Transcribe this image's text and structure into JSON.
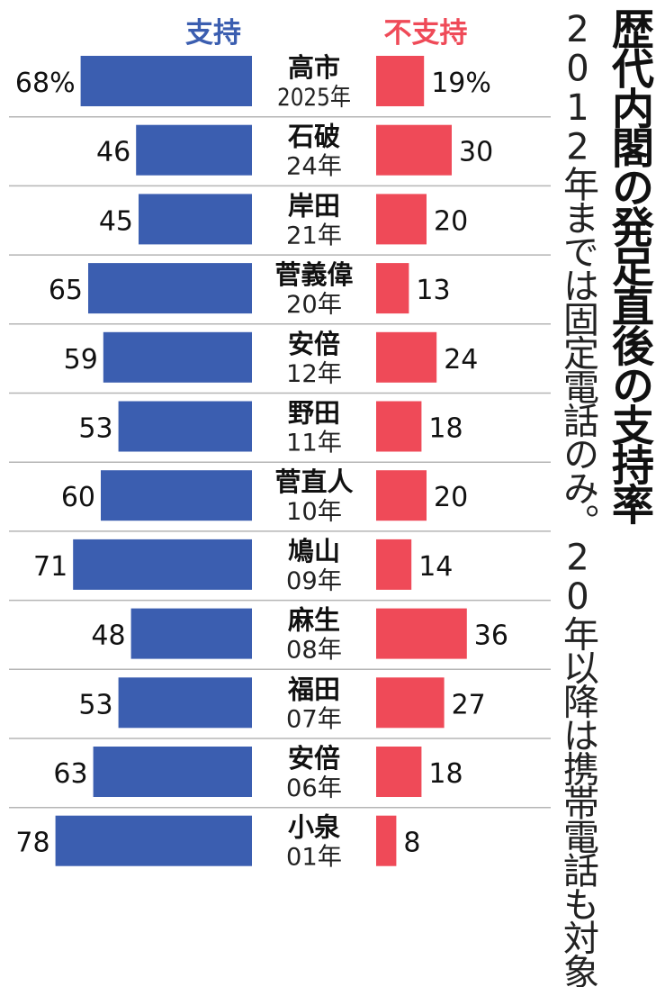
{
  "title": "歴代内閣の発足直後の支持率",
  "note": "2012年までは固定電話のみ。20年以降は携帯電話も対象",
  "colors": {
    "support": "#3b5eb0",
    "nonsupport": "#ef4a58",
    "support_header": "#3b5eb0",
    "nonsupport_header": "#ef4a58"
  },
  "chart_data": {
    "type": "bar",
    "layout": "back-to-back horizontal",
    "headers": {
      "support": "支持",
      "nonsupport": "不支持"
    },
    "unit": "%",
    "categories": [
      {
        "name": "高市",
        "year": "2025年"
      },
      {
        "name": "石破",
        "year": "24年"
      },
      {
        "name": "岸田",
        "year": "21年"
      },
      {
        "name": "菅義偉",
        "year": "20年"
      },
      {
        "name": "安倍",
        "year": "12年"
      },
      {
        "name": "野田",
        "year": "11年"
      },
      {
        "name": "菅直人",
        "year": "10年"
      },
      {
        "name": "鳩山",
        "year": "09年"
      },
      {
        "name": "麻生",
        "year": "08年"
      },
      {
        "name": "福田",
        "year": "07年"
      },
      {
        "name": "安倍",
        "year": "06年"
      },
      {
        "name": "小泉",
        "year": "01年"
      }
    ],
    "series": [
      {
        "name": "支持",
        "values": [
          68,
          46,
          45,
          65,
          59,
          53,
          60,
          71,
          48,
          53,
          63,
          78
        ],
        "labels": [
          "68%",
          "46",
          "45",
          "65",
          "59",
          "53",
          "60",
          "71",
          "48",
          "53",
          "63",
          "78"
        ]
      },
      {
        "name": "不支持",
        "values": [
          19,
          30,
          20,
          13,
          24,
          18,
          20,
          14,
          36,
          27,
          18,
          8
        ],
        "labels": [
          "19%",
          "30",
          "20",
          "13",
          "24",
          "18",
          "20",
          "14",
          "36",
          "27",
          "18",
          "8"
        ]
      }
    ],
    "xlim": [
      0,
      80
    ]
  }
}
